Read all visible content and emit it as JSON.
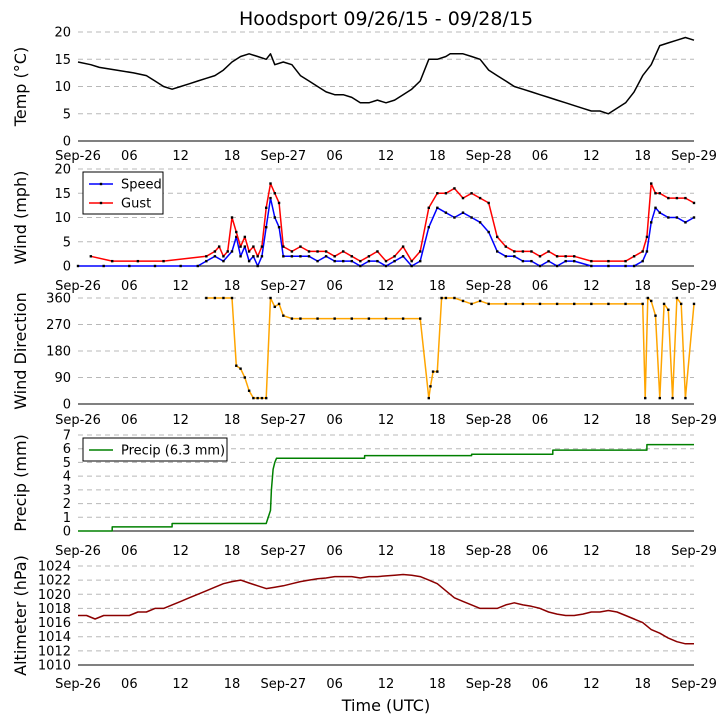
{
  "chart_data": {
    "type": "line",
    "title": "Hoodsport 09/26/15 - 09/28/15",
    "xlabel": "Time (UTC)",
    "x_ticks": [
      "Sep-26",
      "06",
      "12",
      "18",
      "Sep-27",
      "06",
      "12",
      "18",
      "Sep-28",
      "06",
      "12",
      "18",
      "Sep-29"
    ],
    "x_range_hours": [
      0,
      72
    ],
    "colors": {
      "temp": "#000000",
      "speed": "#0000ff",
      "gust": "#ff0000",
      "direction": "#ffa500",
      "precip": "#008000",
      "altimeter": "#8b0000",
      "marker": "#000000"
    },
    "panels": [
      {
        "id": "temp",
        "ylabel": "Temp (°C)",
        "ylim": [
          0,
          20
        ],
        "y_ticks": [
          "0",
          "5",
          "10",
          "15",
          "20"
        ],
        "series": [
          {
            "name": "Temp",
            "color": "#000000",
            "marker": false,
            "x": [
              0,
              1.5,
              2.5,
              4.5,
              6.5,
              8,
              9,
              10,
              11,
              12,
              13,
              14,
              15,
              16,
              17,
              18,
              19,
              20,
              21,
              22,
              22.5,
              23,
              24,
              25,
              26,
              27,
              28,
              29,
              30,
              31,
              32,
              33,
              34,
              35,
              36,
              37,
              38,
              39,
              40,
              41,
              42,
              43,
              43.5,
              44,
              45,
              46,
              47,
              48,
              49,
              50,
              51,
              52,
              53,
              54,
              55,
              56,
              57,
              58,
              59,
              60,
              61,
              62,
              63,
              64,
              65,
              66,
              67,
              68,
              69,
              70,
              71,
              72
            ],
            "y": [
              14.5,
              14,
              13.5,
              13,
              12.5,
              12,
              11,
              10,
              9.5,
              10,
              10.5,
              11,
              11.5,
              12,
              13,
              14.5,
              15.5,
              16,
              15.5,
              15,
              16,
              14,
              14.5,
              14,
              12,
              11,
              10,
              9,
              8.5,
              8.5,
              8,
              7,
              7,
              7.5,
              7,
              7.5,
              8.5,
              9.5,
              11,
              15,
              15,
              15.5,
              16,
              16,
              16,
              15.5,
              15,
              13,
              12,
              11,
              10,
              9.5,
              9,
              8.5,
              8,
              7.5,
              7,
              6.5,
              6,
              5.5,
              5.5,
              5,
              6,
              7,
              9,
              12,
              14,
              17.5,
              18,
              18.5,
              19,
              18.5
            ]
          }
        ]
      },
      {
        "id": "wind",
        "ylabel": "Wind (mph)",
        "ylim": [
          0,
          20
        ],
        "y_ticks": [
          "0",
          "5",
          "10",
          "15",
          "20"
        ],
        "legend": [
          "Speed",
          "Gust"
        ],
        "series": [
          {
            "name": "Speed",
            "color": "#0000ff",
            "marker": true,
            "x": [
              0,
              3,
              6,
              9,
              12,
              14,
              15,
              16,
              17,
              18,
              18.5,
              19,
              19.5,
              20,
              20.5,
              21,
              21.5,
              22,
              22.5,
              23,
              23.5,
              24,
              25,
              26,
              27,
              28,
              29,
              30,
              31,
              32,
              33,
              34,
              35,
              36,
              37,
              38,
              39,
              40,
              41,
              42,
              43,
              44,
              45,
              46,
              47,
              48,
              49,
              50,
              51,
              52,
              53,
              54,
              55,
              56,
              57,
              58,
              60,
              62,
              64,
              65,
              66,
              66.5,
              67,
              67.5,
              68,
              69,
              70,
              71,
              72
            ],
            "y": [
              0,
              0,
              0,
              0,
              0,
              0,
              1,
              2,
              1,
              3,
              6,
              2,
              4,
              1,
              2,
              0,
              2,
              8,
              14,
              10,
              8,
              2,
              2,
              2,
              2,
              1,
              2,
              1,
              1,
              1,
              0,
              1,
              1,
              0,
              1,
              2,
              0,
              1,
              8,
              12,
              11,
              10,
              11,
              10,
              9,
              7,
              3,
              2,
              2,
              1,
              1,
              0,
              1,
              0,
              1,
              1,
              0,
              0,
              0,
              0,
              1,
              3,
              9,
              12,
              11,
              10,
              10,
              9,
              10
            ]
          },
          {
            "name": "Gust",
            "color": "#ff0000",
            "marker": true,
            "x": [
              1.5,
              4,
              7,
              10,
              15,
              16,
              16.5,
              17,
              17.5,
              18,
              18.5,
              19,
              19.5,
              20,
              20.5,
              21,
              21.5,
              22,
              22.5,
              23,
              23.5,
              24,
              25,
              26,
              27,
              28,
              29,
              30,
              31,
              32,
              33,
              34,
              35,
              36,
              37,
              38,
              39,
              40,
              41,
              42,
              43,
              44,
              45,
              46,
              47,
              48,
              49,
              50,
              51,
              52,
              53,
              54,
              55,
              56,
              57,
              58,
              60,
              62,
              64,
              65,
              66,
              66.5,
              67,
              67.5,
              68,
              69,
              70,
              71,
              72
            ],
            "y": [
              2,
              1,
              1,
              1,
              2,
              3,
              4,
              2,
              3,
              10,
              7,
              4,
              6,
              3,
              4,
              2,
              4,
              12,
              17,
              15,
              13,
              4,
              3,
              4,
              3,
              3,
              3,
              2,
              3,
              2,
              1,
              2,
              3,
              1,
              2,
              4,
              1,
              3,
              12,
              15,
              15,
              16,
              14,
              15,
              14,
              13,
              6,
              4,
              3,
              3,
              3,
              2,
              3,
              2,
              2,
              2,
              1,
              1,
              1,
              2,
              3,
              6,
              17,
              15,
              15,
              14,
              14,
              14,
              13
            ]
          }
        ]
      },
      {
        "id": "direction",
        "ylabel": "Wind Direction",
        "ylim": [
          0,
          360
        ],
        "y_ticks": [
          "0",
          "90",
          "180",
          "270",
          "360"
        ],
        "series": [
          {
            "name": "Direction",
            "color": "#ffa500",
            "marker": true,
            "x": [
              15,
              16,
              17,
              18,
              18.5,
              19,
              19.5,
              20,
              20.5,
              21,
              21.5,
              22,
              22.5,
              23,
              23.5,
              24,
              25,
              26,
              28,
              30,
              32,
              34,
              36,
              38,
              40,
              41,
              41.2,
              41.5,
              42,
              42.5,
              43,
              44,
              45,
              46,
              47,
              48,
              50,
              52,
              54,
              56,
              58,
              60,
              62,
              64,
              66,
              66.3,
              66.6,
              67,
              67.5,
              68,
              68.5,
              69,
              69.5,
              70,
              70.5,
              71,
              72
            ],
            "y": [
              360,
              360,
              360,
              360,
              130,
              120,
              90,
              45,
              20,
              20,
              20,
              20,
              360,
              330,
              340,
              300,
              290,
              290,
              290,
              290,
              290,
              290,
              290,
              290,
              290,
              20,
              60,
              110,
              110,
              360,
              360,
              360,
              350,
              340,
              350,
              340,
              340,
              340,
              340,
              340,
              340,
              340,
              340,
              340,
              340,
              20,
              360,
              350,
              300,
              20,
              340,
              320,
              20,
              360,
              340,
              20,
              340
            ]
          }
        ]
      },
      {
        "id": "precip",
        "ylabel": "Precip (mm)",
        "ylim": [
          0,
          7
        ],
        "y_ticks": [
          "0",
          "1",
          "2",
          "3",
          "4",
          "5",
          "6",
          "7"
        ],
        "legend": [
          "Precip (6.3 mm)"
        ],
        "series": [
          {
            "name": "Precip (6.3 mm)",
            "color": "#008000",
            "marker": false,
            "x": [
              0,
              4,
              4,
              11,
              11,
              22,
              22.5,
              22.6,
              22.8,
              23,
              23.2,
              23.5,
              33.5,
              33.5,
              46,
              46,
              55.5,
              55.5,
              66.5,
              66.5,
              72
            ],
            "y": [
              0,
              0,
              0.3,
              0.3,
              0.55,
              0.55,
              1.5,
              3,
              4.5,
              5,
              5.3,
              5.3,
              5.3,
              5.5,
              5.5,
              5.6,
              5.6,
              5.9,
              5.9,
              6.3,
              6.3
            ]
          }
        ]
      },
      {
        "id": "altimeter",
        "ylabel": "Altimeter (hPa)",
        "ylim": [
          1010,
          1024
        ],
        "y_ticks": [
          "1010",
          "1012",
          "1014",
          "1016",
          "1018",
          "1020",
          "1022",
          "1024"
        ],
        "series": [
          {
            "name": "Altimeter",
            "color": "#8b0000",
            "marker": false,
            "x": [
              0,
              1,
              2,
              3,
              4,
              5,
              6,
              7,
              8,
              9,
              10,
              11,
              12,
              13,
              14,
              15,
              16,
              17,
              18,
              19,
              20,
              21,
              22,
              23,
              24,
              25,
              26,
              27,
              28,
              29,
              30,
              31,
              32,
              33,
              34,
              35,
              36,
              37,
              38,
              39,
              40,
              41,
              42,
              43,
              44,
              45,
              46,
              47,
              48,
              49,
              50,
              51,
              52,
              53,
              54,
              55,
              56,
              57,
              58,
              59,
              60,
              61,
              62,
              63,
              64,
              65,
              66,
              67,
              68,
              69,
              70,
              71,
              72
            ],
            "y": [
              1017,
              1017,
              1016.5,
              1017,
              1017,
              1017,
              1017,
              1017.5,
              1017.5,
              1018,
              1018,
              1018.5,
              1019,
              1019.5,
              1020,
              1020.5,
              1021,
              1021.5,
              1021.8,
              1022,
              1021.6,
              1021.2,
              1020.8,
              1021,
              1021.2,
              1021.5,
              1021.8,
              1022,
              1022.2,
              1022.3,
              1022.5,
              1022.5,
              1022.5,
              1022.3,
              1022.5,
              1022.5,
              1022.6,
              1022.7,
              1022.8,
              1022.7,
              1022.5,
              1022,
              1021.5,
              1020.5,
              1019.5,
              1019,
              1018.5,
              1018,
              1018,
              1018,
              1018.5,
              1018.8,
              1018.5,
              1018.3,
              1018,
              1017.5,
              1017.2,
              1017,
              1017,
              1017.2,
              1017.5,
              1017.5,
              1017.7,
              1017.5,
              1017,
              1016.5,
              1016,
              1015,
              1014.5,
              1013.8,
              1013.3,
              1013,
              1013
            ]
          }
        ]
      }
    ]
  }
}
